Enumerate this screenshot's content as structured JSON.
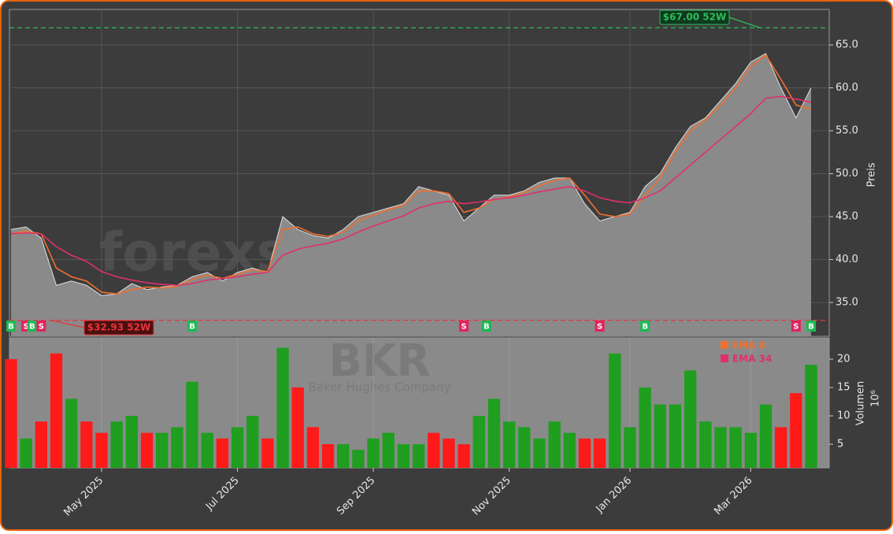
{
  "chart_data": {
    "type": "area",
    "watermark": "forexsignale.trade",
    "ticker": "BKR",
    "company": "Baker Hughes Company",
    "ylabel": "Preis",
    "categories": [
      null,
      null,
      null,
      null,
      null,
      null,
      "May 2025",
      null,
      null,
      null,
      null,
      null,
      null,
      null,
      null,
      "Jul 2025",
      null,
      null,
      null,
      null,
      null,
      null,
      null,
      null,
      "Sep 2025",
      null,
      null,
      null,
      null,
      null,
      null,
      null,
      null,
      "Nov 2025",
      null,
      null,
      null,
      null,
      null,
      null,
      null,
      "Jan 2026",
      null,
      null,
      null,
      null,
      null,
      null,
      null,
      "Mar 2026",
      null,
      null,
      null,
      null
    ],
    "values": [
      43.5,
      43.8,
      42.5,
      37,
      37.5,
      37,
      35.8,
      36,
      37.2,
      36.5,
      36.8,
      37,
      38,
      38.5,
      37.5,
      38.5,
      39,
      38.5,
      45,
      43.5,
      42.8,
      42.5,
      43.5,
      45,
      45.5,
      46,
      46.5,
      48.5,
      48,
      47.5,
      44.5,
      46,
      47.5,
      47.5,
      48,
      49,
      49.5,
      49.5,
      46.5,
      44.5,
      45,
      45.5,
      48.5,
      50,
      53,
      55.5,
      56.5,
      58.5,
      60.5,
      63,
      64,
      60,
      56.5,
      60
    ],
    "color": "#8a8a8a",
    "ema_series": [
      {
        "name": "EMA 8",
        "color": "#f07030",
        "values": [
          43,
          43.3,
          43,
          39,
          38,
          37.5,
          36.2,
          36,
          36.5,
          36.8,
          36.7,
          36.9,
          37.7,
          38.2,
          37.8,
          38.3,
          38.8,
          38.6,
          43.5,
          43.8,
          43,
          42.7,
          43.2,
          44.5,
          45.2,
          45.8,
          46.3,
          48,
          48,
          47.7,
          45.5,
          46,
          47,
          47.3,
          47.8,
          48.6,
          49.2,
          49.5,
          47.5,
          45.3,
          45,
          45.3,
          47.5,
          49.5,
          52.5,
          55,
          56.3,
          58,
          60,
          62.5,
          63.8,
          61,
          58,
          57.5
        ]
      },
      {
        "name": "EMA 34",
        "color": "#e0306a",
        "values": [
          43,
          43.1,
          43,
          41.5,
          40.5,
          39.8,
          38.6,
          38,
          37.6,
          37.3,
          37.1,
          37,
          37.2,
          37.6,
          37.8,
          38,
          38.3,
          38.5,
          40.5,
          41.2,
          41.6,
          41.9,
          42.4,
          43.2,
          43.9,
          44.5,
          45.1,
          46,
          46.5,
          46.8,
          46.5,
          46.7,
          47,
          47.2,
          47.5,
          47.9,
          48.2,
          48.5,
          48,
          47.2,
          46.8,
          46.6,
          47.2,
          48,
          49.5,
          51,
          52.5,
          54,
          55.5,
          57,
          58.8,
          59,
          58.7,
          58.3
        ]
      }
    ],
    "ylim": [
      31.06,
      69.13
    ],
    "yticks": [
      {
        "value": 35,
        "label": "35.0"
      },
      {
        "value": 40,
        "label": "40.0"
      },
      {
        "value": 45,
        "label": "45.0"
      },
      {
        "value": 50,
        "label": "50.0"
      },
      {
        "value": 55,
        "label": "55.0"
      },
      {
        "value": 60,
        "label": "60.0"
      },
      {
        "value": 65,
        "label": "65.0"
      }
    ],
    "grid": true,
    "high": {
      "value": 67,
      "label": "$67.00 52W",
      "color": "#2ebd5a"
    },
    "low": {
      "value": 32.93,
      "label": "$32.93 52W",
      "color": "#e8343a"
    },
    "signals": [
      {
        "label": "B",
        "index": 0
      },
      {
        "label": "S",
        "index": 1
      },
      {
        "label": "B",
        "index": 1.4
      },
      {
        "label": "S",
        "index": 2
      },
      {
        "label": "B",
        "index": 12
      },
      {
        "label": "S",
        "index": 30
      },
      {
        "label": "B",
        "index": 31.5
      },
      {
        "label": "S",
        "index": 39
      },
      {
        "label": "B",
        "index": 42
      },
      {
        "label": "S",
        "index": 52
      },
      {
        "label": "B",
        "index": 53
      }
    ],
    "signal_colors": {
      "B": "#1db954",
      "S": "#e0245e"
    },
    "volume": {
      "ylabel": "Volumen",
      "unit_label": "10⁶",
      "up_color": "#1f9e1f",
      "down_color": "#ff1a1a",
      "values": [
        20,
        6,
        9,
        21,
        13,
        9,
        7,
        9,
        10,
        7,
        7,
        8,
        16,
        7,
        6,
        8,
        10,
        6,
        22,
        15,
        8,
        5,
        5,
        4,
        6,
        7,
        5,
        5,
        7,
        6,
        5,
        10,
        13,
        9,
        8,
        6,
        9,
        7,
        6,
        6,
        21,
        8,
        15,
        12,
        12,
        18,
        9,
        8,
        8,
        7,
        12,
        8,
        14,
        19
      ],
      "ylim": [
        0.83,
        23.75
      ],
      "yticks": [
        5,
        10,
        15,
        20
      ]
    }
  }
}
